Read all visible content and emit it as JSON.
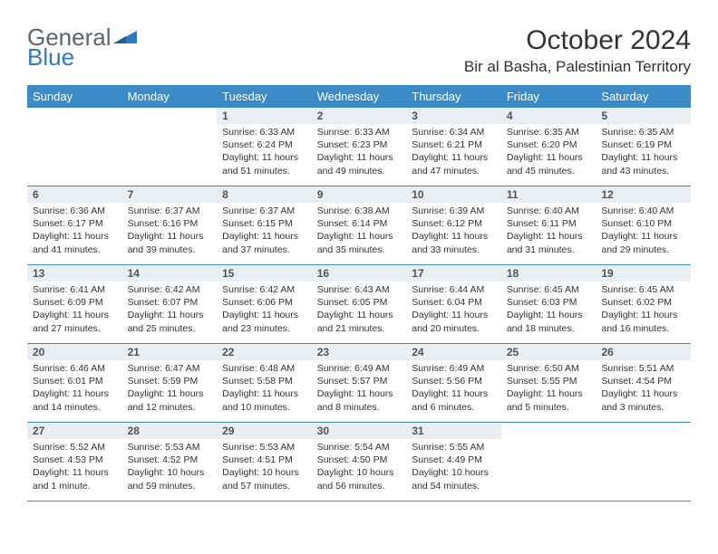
{
  "logo": {
    "text1": "General",
    "text2": "Blue"
  },
  "title": "October 2024",
  "subtitle": "Bir al Basha, Palestinian Territory",
  "colors": {
    "header_bg": "#3b8bc9",
    "header_text": "#ffffff",
    "daynum_bg": "#e9eef2",
    "daynum_text": "#4a5560",
    "row_border": "#3b8bc9",
    "logo_accent": "#2b7bbf",
    "logo_gray": "#5b6670"
  },
  "dayHeaders": [
    "Sunday",
    "Monday",
    "Tuesday",
    "Wednesday",
    "Thursday",
    "Friday",
    "Saturday"
  ],
  "weeks": [
    [
      null,
      null,
      {
        "n": "1",
        "sr": "6:33 AM",
        "ss": "6:24 PM",
        "dl": "11 hours and 51 minutes."
      },
      {
        "n": "2",
        "sr": "6:33 AM",
        "ss": "6:23 PM",
        "dl": "11 hours and 49 minutes."
      },
      {
        "n": "3",
        "sr": "6:34 AM",
        "ss": "6:21 PM",
        "dl": "11 hours and 47 minutes."
      },
      {
        "n": "4",
        "sr": "6:35 AM",
        "ss": "6:20 PM",
        "dl": "11 hours and 45 minutes."
      },
      {
        "n": "5",
        "sr": "6:35 AM",
        "ss": "6:19 PM",
        "dl": "11 hours and 43 minutes."
      }
    ],
    [
      {
        "n": "6",
        "sr": "6:36 AM",
        "ss": "6:17 PM",
        "dl": "11 hours and 41 minutes."
      },
      {
        "n": "7",
        "sr": "6:37 AM",
        "ss": "6:16 PM",
        "dl": "11 hours and 39 minutes."
      },
      {
        "n": "8",
        "sr": "6:37 AM",
        "ss": "6:15 PM",
        "dl": "11 hours and 37 minutes."
      },
      {
        "n": "9",
        "sr": "6:38 AM",
        "ss": "6:14 PM",
        "dl": "11 hours and 35 minutes."
      },
      {
        "n": "10",
        "sr": "6:39 AM",
        "ss": "6:12 PM",
        "dl": "11 hours and 33 minutes."
      },
      {
        "n": "11",
        "sr": "6:40 AM",
        "ss": "6:11 PM",
        "dl": "11 hours and 31 minutes."
      },
      {
        "n": "12",
        "sr": "6:40 AM",
        "ss": "6:10 PM",
        "dl": "11 hours and 29 minutes."
      }
    ],
    [
      {
        "n": "13",
        "sr": "6:41 AM",
        "ss": "6:09 PM",
        "dl": "11 hours and 27 minutes."
      },
      {
        "n": "14",
        "sr": "6:42 AM",
        "ss": "6:07 PM",
        "dl": "11 hours and 25 minutes."
      },
      {
        "n": "15",
        "sr": "6:42 AM",
        "ss": "6:06 PM",
        "dl": "11 hours and 23 minutes."
      },
      {
        "n": "16",
        "sr": "6:43 AM",
        "ss": "6:05 PM",
        "dl": "11 hours and 21 minutes."
      },
      {
        "n": "17",
        "sr": "6:44 AM",
        "ss": "6:04 PM",
        "dl": "11 hours and 20 minutes."
      },
      {
        "n": "18",
        "sr": "6:45 AM",
        "ss": "6:03 PM",
        "dl": "11 hours and 18 minutes."
      },
      {
        "n": "19",
        "sr": "6:45 AM",
        "ss": "6:02 PM",
        "dl": "11 hours and 16 minutes."
      }
    ],
    [
      {
        "n": "20",
        "sr": "6:46 AM",
        "ss": "6:01 PM",
        "dl": "11 hours and 14 minutes."
      },
      {
        "n": "21",
        "sr": "6:47 AM",
        "ss": "5:59 PM",
        "dl": "11 hours and 12 minutes."
      },
      {
        "n": "22",
        "sr": "6:48 AM",
        "ss": "5:58 PM",
        "dl": "11 hours and 10 minutes."
      },
      {
        "n": "23",
        "sr": "6:49 AM",
        "ss": "5:57 PM",
        "dl": "11 hours and 8 minutes."
      },
      {
        "n": "24",
        "sr": "6:49 AM",
        "ss": "5:56 PM",
        "dl": "11 hours and 6 minutes."
      },
      {
        "n": "25",
        "sr": "6:50 AM",
        "ss": "5:55 PM",
        "dl": "11 hours and 5 minutes."
      },
      {
        "n": "26",
        "sr": "5:51 AM",
        "ss": "4:54 PM",
        "dl": "11 hours and 3 minutes."
      }
    ],
    [
      {
        "n": "27",
        "sr": "5:52 AM",
        "ss": "4:53 PM",
        "dl": "11 hours and 1 minute."
      },
      {
        "n": "28",
        "sr": "5:53 AM",
        "ss": "4:52 PM",
        "dl": "10 hours and 59 minutes."
      },
      {
        "n": "29",
        "sr": "5:53 AM",
        "ss": "4:51 PM",
        "dl": "10 hours and 57 minutes."
      },
      {
        "n": "30",
        "sr": "5:54 AM",
        "ss": "4:50 PM",
        "dl": "10 hours and 56 minutes."
      },
      {
        "n": "31",
        "sr": "5:55 AM",
        "ss": "4:49 PM",
        "dl": "10 hours and 54 minutes."
      },
      null,
      null
    ]
  ],
  "labels": {
    "sunrise": "Sunrise:",
    "sunset": "Sunset:",
    "daylight": "Daylight:"
  }
}
